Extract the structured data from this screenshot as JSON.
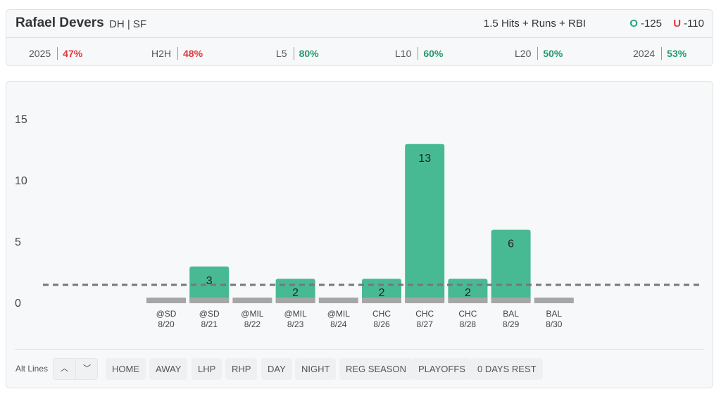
{
  "header": {
    "player_name": "Rafael Devers",
    "player_meta": "DH | SF",
    "market": "1.5 Hits + Runs + RBI",
    "over": {
      "letter": "O",
      "odds": "-125"
    },
    "under": {
      "letter": "U",
      "odds": "-110"
    }
  },
  "stats": [
    {
      "label": "2025",
      "value": "47%",
      "status": "red"
    },
    {
      "label": "H2H",
      "value": "48%",
      "status": "red"
    },
    {
      "label": "L5",
      "value": "80%",
      "status": "green"
    },
    {
      "label": "L10",
      "value": "60%",
      "status": "green"
    },
    {
      "label": "L20",
      "value": "50%",
      "status": "green"
    },
    {
      "label": "2024",
      "value": "53%",
      "status": "green"
    }
  ],
  "colors": {
    "over_bar": "#47ba94",
    "under_bar": "#a6a6a6",
    "line": "#777777",
    "red": "#e0393e",
    "green": "#23996b"
  },
  "chart_data": {
    "type": "bar",
    "y_ticks": [
      0,
      5,
      10,
      15
    ],
    "ylim": [
      0,
      15
    ],
    "line_value": 1.5,
    "categories": [
      {
        "opp": "@SD",
        "date": "8/20"
      },
      {
        "opp": "@SD",
        "date": "8/21"
      },
      {
        "opp": "@MIL",
        "date": "8/22"
      },
      {
        "opp": "@MIL",
        "date": "8/23"
      },
      {
        "opp": "@MIL",
        "date": "8/24"
      },
      {
        "opp": "CHC",
        "date": "8/26"
      },
      {
        "opp": "CHC",
        "date": "8/27"
      },
      {
        "opp": "CHC",
        "date": "8/28"
      },
      {
        "opp": "BAL",
        "date": "8/29"
      },
      {
        "opp": "BAL",
        "date": "8/30"
      }
    ],
    "values": [
      0,
      3,
      0,
      2,
      0,
      2,
      13,
      2,
      6,
      0
    ]
  },
  "footer": {
    "alt_label": "Alt Lines",
    "up_glyph": "︿",
    "down_glyph": "﹀",
    "filters": [
      "HOME",
      "AWAY",
      "LHP",
      "RHP",
      "DAY",
      "NIGHT",
      "REG SEASON",
      "PLAYOFFS",
      "0 DAYS REST"
    ]
  }
}
